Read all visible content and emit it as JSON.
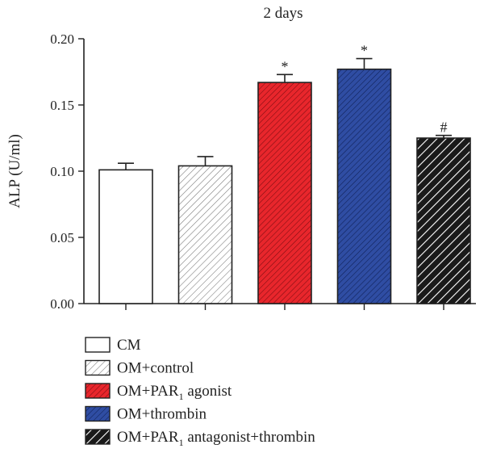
{
  "chart_data": {
    "type": "bar",
    "title": "2 days",
    "xlabel": "",
    "ylabel": "ALP (U/ml)",
    "ylim": [
      0,
      0.2
    ],
    "yticks": [
      "0.00",
      "0.05",
      "0.10",
      "0.15",
      "0.20"
    ],
    "ytick_values": [
      0,
      0.05,
      0.1,
      0.15,
      0.2
    ],
    "grid": false,
    "legend_position": "bottom",
    "categories": [
      "CM",
      "OM+control",
      "OM+PAR1 agonist",
      "OM+thrombin",
      "OM+PAR1 antagonist+thrombin"
    ],
    "values": [
      0.101,
      0.104,
      0.167,
      0.177,
      0.125
    ],
    "errors": [
      0.005,
      0.007,
      0.006,
      0.008,
      0.002
    ],
    "annotations": [
      "",
      "",
      "*",
      "*",
      "#"
    ],
    "fills": [
      {
        "color": "#ffffff",
        "pattern": "none"
      },
      {
        "color": "#ffffff",
        "pattern": "hatch"
      },
      {
        "color": "#e8262c",
        "pattern": "hatch"
      },
      {
        "color": "#2f4da3",
        "pattern": "hatch"
      },
      {
        "color": "#1a1a1a",
        "pattern": "hatch-wide"
      }
    ],
    "legend": [
      {
        "pre": "CM",
        "sub": "",
        "post": ""
      },
      {
        "pre": "OM+control",
        "sub": "",
        "post": ""
      },
      {
        "pre": "OM+PAR",
        "sub": "1",
        "post": " agonist"
      },
      {
        "pre": "OM+thrombin",
        "sub": "",
        "post": ""
      },
      {
        "pre": "OM+PAR",
        "sub": "1",
        "post": " antagonist+thrombin"
      }
    ]
  }
}
